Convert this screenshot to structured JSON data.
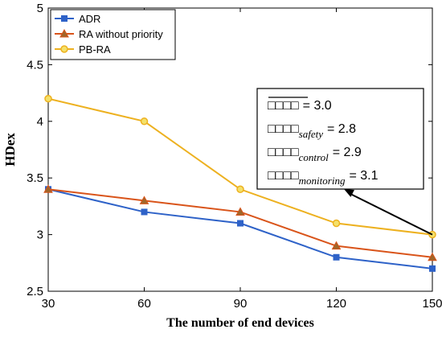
{
  "chart_data": {
    "type": "line",
    "xlabel": "The number of end devices",
    "ylabel": "HDex",
    "x": [
      30,
      60,
      90,
      120,
      150
    ],
    "xlim": [
      30,
      150
    ],
    "ylim": [
      2.5,
      5
    ],
    "xticks": [
      "30",
      "60",
      "90",
      "120",
      "150"
    ],
    "yticks": [
      "2.5",
      "3",
      "3.5",
      "4",
      "4.5",
      "5"
    ],
    "grid": false,
    "legend_position": "top-left",
    "series": [
      {
        "name": "ADR",
        "values": [
          3.4,
          3.2,
          3.1,
          2.8,
          2.7
        ],
        "color": "#2e62c8",
        "marker": "square"
      },
      {
        "name": "RA without priority",
        "values": [
          3.4,
          3.3,
          3.2,
          2.9,
          2.8
        ],
        "color": "#d9541a",
        "marker": "triangle"
      },
      {
        "name": "PB-RA",
        "values": [
          4.2,
          4.0,
          3.4,
          3.1,
          3.0
        ],
        "color": "#edb120",
        "marker": "circle"
      }
    ],
    "annotation": {
      "lines": [
        {
          "glyph": "□□□□",
          "sub": "",
          "eq": "= 3.0",
          "overline": true
        },
        {
          "glyph": "□□□□",
          "sub": "safety",
          "eq": "= 2.8",
          "overline": false
        },
        {
          "glyph": "□□□□",
          "sub": "control",
          "eq": "= 2.9",
          "overline": false
        },
        {
          "glyph": "□□□□",
          "sub": "monitoring",
          "eq": "= 3.1",
          "overline": false
        }
      ],
      "point_to": {
        "x": 150,
        "y": 3.0
      }
    }
  }
}
